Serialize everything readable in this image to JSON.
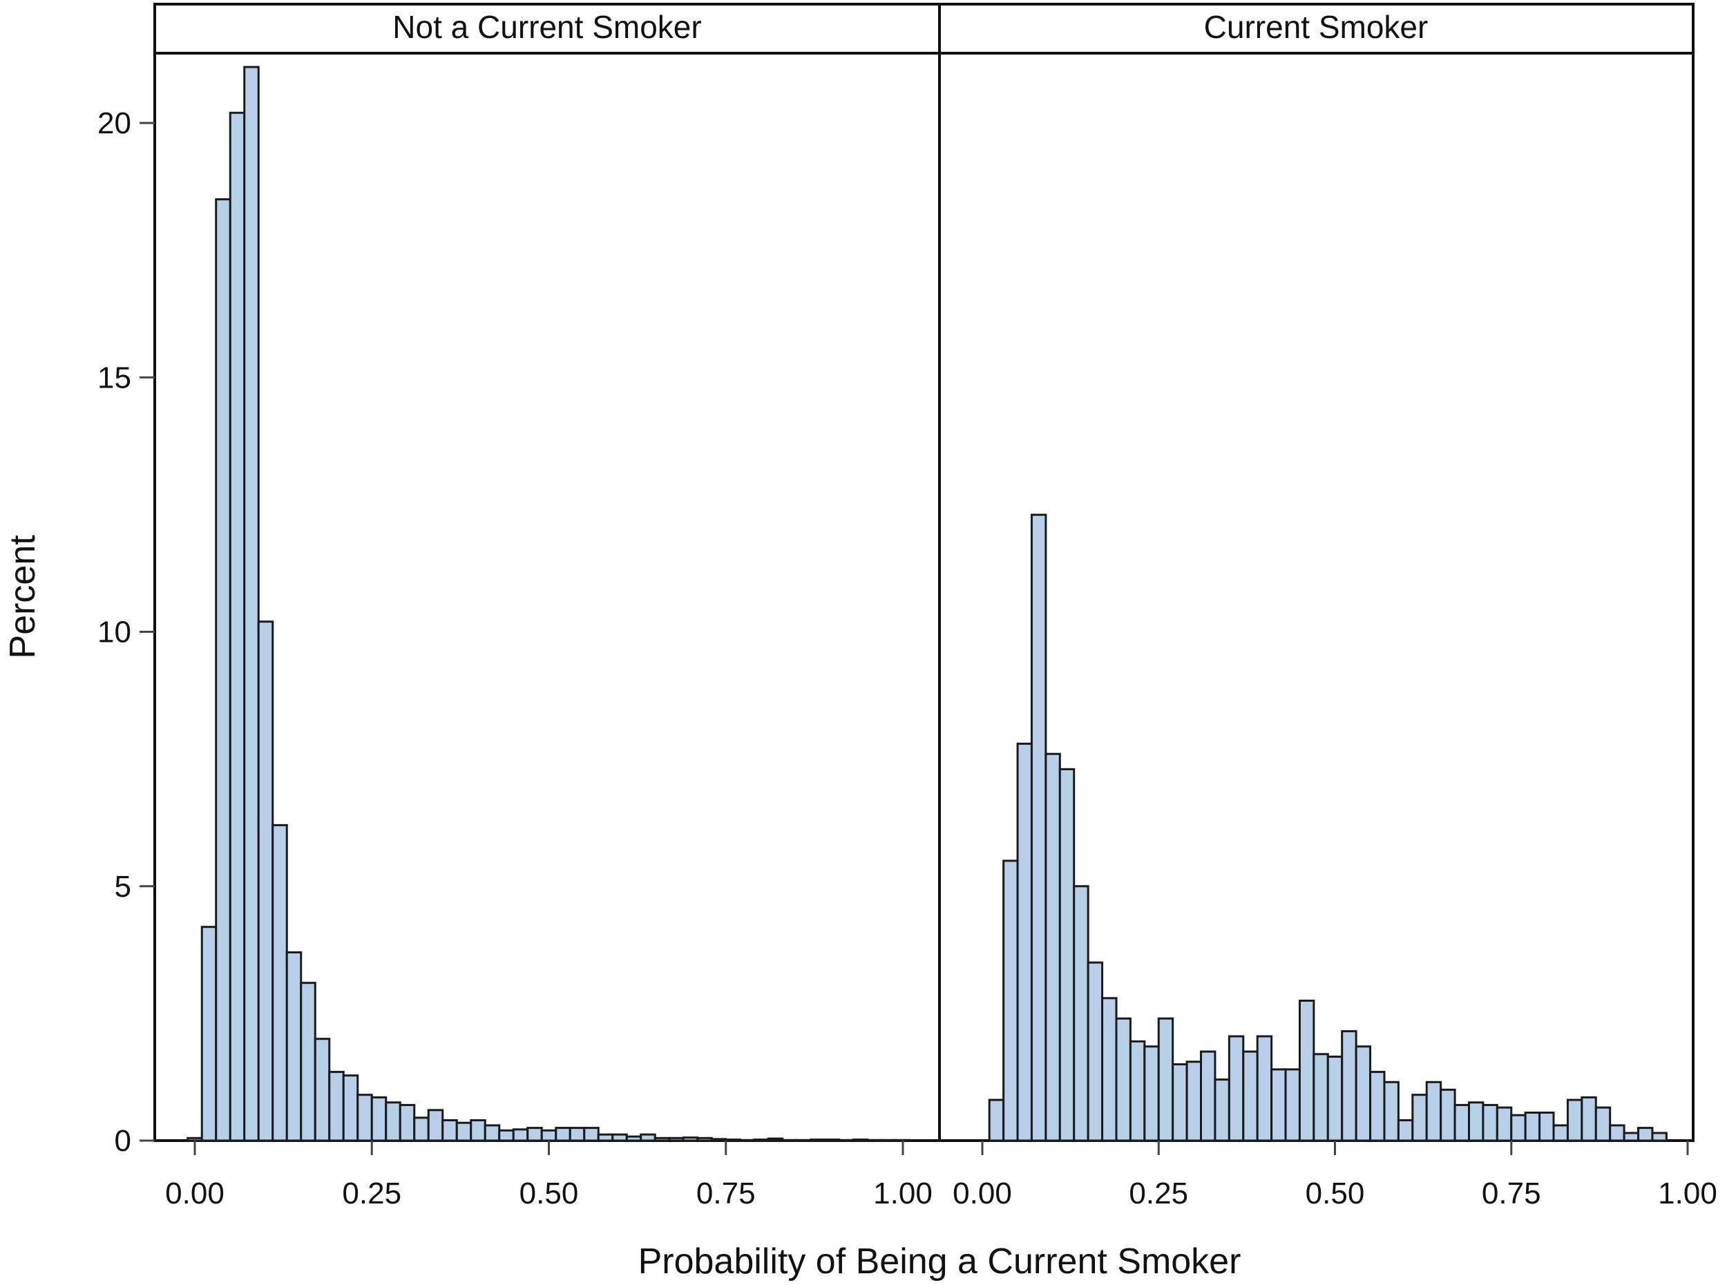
{
  "chart_data": {
    "type": "bar",
    "subtype": "paneled-histogram",
    "xlabel": "Probability of Being a Current Smoker",
    "ylabel": "Percent",
    "xlim": [
      0,
      1
    ],
    "ylim": [
      0,
      21.5
    ],
    "bin_width": 0.02,
    "x_ticks": [
      "0.00",
      "0.25",
      "0.50",
      "0.75",
      "1.00"
    ],
    "x_tick_values": [
      0,
      0.25,
      0.5,
      0.75,
      1.0
    ],
    "y_ticks": [
      "0",
      "5",
      "10",
      "15",
      "20"
    ],
    "y_tick_values": [
      0,
      5,
      10,
      15,
      20
    ],
    "bar_color": "#b8cfe9",
    "grid": false,
    "panels": [
      {
        "name": "Not a Current Smoker",
        "bin_midpoints": [
          0.0,
          0.02,
          0.04,
          0.06,
          0.08,
          0.1,
          0.12,
          0.14,
          0.16,
          0.18,
          0.2,
          0.22,
          0.24,
          0.26,
          0.28,
          0.3,
          0.32,
          0.34,
          0.36,
          0.38,
          0.4,
          0.42,
          0.44,
          0.46,
          0.48,
          0.5,
          0.52,
          0.54,
          0.56,
          0.58,
          0.6,
          0.62,
          0.64,
          0.66,
          0.68,
          0.7,
          0.72,
          0.74,
          0.76,
          0.78,
          0.8,
          0.82,
          0.84,
          0.86,
          0.88,
          0.9,
          0.92,
          0.94,
          0.96,
          0.98,
          1.0
        ],
        "values": [
          0.05,
          4.2,
          18.5,
          20.2,
          21.1,
          10.2,
          6.2,
          3.7,
          3.1,
          2.0,
          1.35,
          1.28,
          0.9,
          0.85,
          0.75,
          0.7,
          0.45,
          0.6,
          0.4,
          0.35,
          0.4,
          0.3,
          0.2,
          0.22,
          0.25,
          0.2,
          0.25,
          0.25,
          0.25,
          0.12,
          0.12,
          0.08,
          0.12,
          0.05,
          0.05,
          0.06,
          0.05,
          0.03,
          0.02,
          0.01,
          0.02,
          0.04,
          0.01,
          0.01,
          0.02,
          0.02,
          0.01,
          0.02,
          0.01,
          0.01,
          0.01
        ]
      },
      {
        "name": "Current Smoker",
        "bin_midpoints": [
          0.02,
          0.04,
          0.06,
          0.08,
          0.1,
          0.12,
          0.14,
          0.16,
          0.18,
          0.2,
          0.22,
          0.24,
          0.26,
          0.28,
          0.3,
          0.32,
          0.34,
          0.36,
          0.38,
          0.4,
          0.42,
          0.44,
          0.46,
          0.48,
          0.5,
          0.52,
          0.54,
          0.56,
          0.58,
          0.6,
          0.62,
          0.64,
          0.66,
          0.68,
          0.7,
          0.72,
          0.74,
          0.76,
          0.78,
          0.8,
          0.82,
          0.84,
          0.86,
          0.88,
          0.9,
          0.92,
          0.94,
          0.96
        ],
        "values": [
          0.8,
          5.5,
          7.8,
          12.3,
          7.6,
          7.3,
          5.0,
          3.5,
          2.8,
          2.4,
          1.95,
          1.85,
          2.4,
          1.5,
          1.55,
          1.75,
          1.2,
          2.05,
          1.75,
          2.05,
          1.4,
          1.4,
          2.75,
          1.7,
          1.65,
          2.15,
          1.85,
          1.35,
          1.15,
          0.4,
          0.9,
          1.15,
          1.0,
          0.7,
          0.75,
          0.7,
          0.65,
          0.5,
          0.55,
          0.55,
          0.3,
          0.8,
          0.85,
          0.65,
          0.3,
          0.15,
          0.25,
          0.15
        ]
      }
    ]
  }
}
